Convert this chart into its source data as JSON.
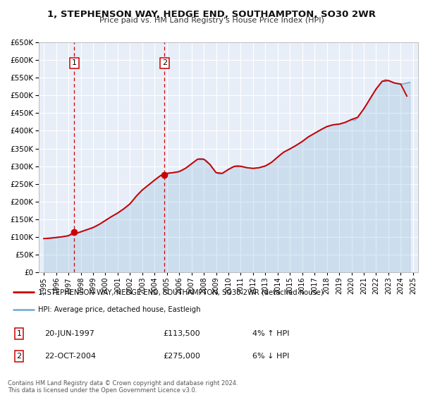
{
  "title": "1, STEPHENSON WAY, HEDGE END, SOUTHAMPTON, SO30 2WR",
  "subtitle": "Price paid vs. HM Land Registry's House Price Index (HPI)",
  "legend_line1": "1, STEPHENSON WAY, HEDGE END, SOUTHAMPTON, SO30 2WR (detached house)",
  "legend_line2": "HPI: Average price, detached house, Eastleigh",
  "annotation1_label": "1",
  "annotation1_date": "20-JUN-1997",
  "annotation1_price": "£113,500",
  "annotation1_hpi": "4% ↑ HPI",
  "annotation1_year": 1997.47,
  "annotation1_value": 113500,
  "annotation2_label": "2",
  "annotation2_date": "22-OCT-2004",
  "annotation2_price": "£275,000",
  "annotation2_hpi": "6% ↓ HPI",
  "annotation2_year": 2004.81,
  "annotation2_value": 275000,
  "price_color": "#cc0000",
  "hpi_color": "#7ab0d4",
  "background_color": "#e8eef8",
  "grid_color": "#ffffff",
  "ylim": [
    0,
    650000
  ],
  "xlim_start": 1994.6,
  "xlim_end": 2025.4,
  "footer": "Contains HM Land Registry data © Crown copyright and database right 2024.\nThis data is licensed under the Open Government Licence v3.0.",
  "hpi_data": [
    [
      1995.0,
      96000
    ],
    [
      1995.25,
      97000
    ],
    [
      1995.5,
      97500
    ],
    [
      1995.75,
      98000
    ],
    [
      1996.0,
      99000
    ],
    [
      1996.25,
      100000
    ],
    [
      1996.5,
      101000
    ],
    [
      1996.75,
      102500
    ],
    [
      1997.0,
      104000
    ],
    [
      1997.25,
      106000
    ],
    [
      1997.5,
      109000
    ],
    [
      1997.75,
      112000
    ],
    [
      1998.0,
      115000
    ],
    [
      1998.25,
      118000
    ],
    [
      1998.5,
      121000
    ],
    [
      1998.75,
      124000
    ],
    [
      1999.0,
      127000
    ],
    [
      1999.25,
      131000
    ],
    [
      1999.5,
      136000
    ],
    [
      1999.75,
      141000
    ],
    [
      2000.0,
      147000
    ],
    [
      2000.25,
      153000
    ],
    [
      2000.5,
      158000
    ],
    [
      2000.75,
      163000
    ],
    [
      2001.0,
      168000
    ],
    [
      2001.25,
      174000
    ],
    [
      2001.5,
      180000
    ],
    [
      2001.75,
      186000
    ],
    [
      2002.0,
      194000
    ],
    [
      2002.25,
      204000
    ],
    [
      2002.5,
      215000
    ],
    [
      2002.75,
      225000
    ],
    [
      2003.0,
      233000
    ],
    [
      2003.25,
      240000
    ],
    [
      2003.5,
      247000
    ],
    [
      2003.75,
      254000
    ],
    [
      2004.0,
      261000
    ],
    [
      2004.25,
      268000
    ],
    [
      2004.5,
      274000
    ],
    [
      2004.75,
      278000
    ],
    [
      2005.0,
      280000
    ],
    [
      2005.25,
      281000
    ],
    [
      2005.5,
      282000
    ],
    [
      2005.75,
      283000
    ],
    [
      2006.0,
      285000
    ],
    [
      2006.25,
      289000
    ],
    [
      2006.5,
      294000
    ],
    [
      2006.75,
      300000
    ],
    [
      2007.0,
      307000
    ],
    [
      2007.25,
      314000
    ],
    [
      2007.5,
      320000
    ],
    [
      2007.75,
      322000
    ],
    [
      2008.0,
      320000
    ],
    [
      2008.25,
      315000
    ],
    [
      2008.5,
      305000
    ],
    [
      2008.75,
      292000
    ],
    [
      2009.0,
      282000
    ],
    [
      2009.25,
      278000
    ],
    [
      2009.5,
      280000
    ],
    [
      2009.75,
      285000
    ],
    [
      2010.0,
      291000
    ],
    [
      2010.25,
      297000
    ],
    [
      2010.5,
      300000
    ],
    [
      2010.75,
      302000
    ],
    [
      2011.0,
      300000
    ],
    [
      2011.25,
      298000
    ],
    [
      2011.5,
      296000
    ],
    [
      2011.75,
      295000
    ],
    [
      2012.0,
      294000
    ],
    [
      2012.25,
      295000
    ],
    [
      2012.5,
      296000
    ],
    [
      2012.75,
      298000
    ],
    [
      2013.0,
      301000
    ],
    [
      2013.25,
      305000
    ],
    [
      2013.5,
      311000
    ],
    [
      2013.75,
      318000
    ],
    [
      2014.0,
      326000
    ],
    [
      2014.25,
      334000
    ],
    [
      2014.5,
      340000
    ],
    [
      2014.75,
      345000
    ],
    [
      2015.0,
      349000
    ],
    [
      2015.25,
      354000
    ],
    [
      2015.5,
      359000
    ],
    [
      2015.75,
      364000
    ],
    [
      2016.0,
      370000
    ],
    [
      2016.25,
      377000
    ],
    [
      2016.5,
      383000
    ],
    [
      2016.75,
      388000
    ],
    [
      2017.0,
      393000
    ],
    [
      2017.25,
      398000
    ],
    [
      2017.5,
      403000
    ],
    [
      2017.75,
      408000
    ],
    [
      2018.0,
      412000
    ],
    [
      2018.25,
      415000
    ],
    [
      2018.5,
      417000
    ],
    [
      2018.75,
      418000
    ],
    [
      2019.0,
      419000
    ],
    [
      2019.25,
      421000
    ],
    [
      2019.5,
      424000
    ],
    [
      2019.75,
      428000
    ],
    [
      2020.0,
      432000
    ],
    [
      2020.25,
      430000
    ],
    [
      2020.5,
      438000
    ],
    [
      2020.75,
      450000
    ],
    [
      2021.0,
      462000
    ],
    [
      2021.25,
      475000
    ],
    [
      2021.5,
      490000
    ],
    [
      2021.75,
      505000
    ],
    [
      2022.0,
      518000
    ],
    [
      2022.25,
      530000
    ],
    [
      2022.5,
      540000
    ],
    [
      2022.75,
      545000
    ],
    [
      2023.0,
      542000
    ],
    [
      2023.25,
      538000
    ],
    [
      2023.5,
      535000
    ],
    [
      2023.75,
      533000
    ],
    [
      2024.0,
      532000
    ],
    [
      2024.25,
      533000
    ],
    [
      2024.5,
      535000
    ],
    [
      2024.75,
      537000
    ]
  ],
  "price_data": [
    [
      1995.0,
      96000
    ],
    [
      1995.5,
      97000
    ],
    [
      1996.0,
      99000
    ],
    [
      1996.5,
      101000
    ],
    [
      1997.0,
      104000
    ],
    [
      1997.47,
      113500
    ],
    [
      1997.75,
      112000
    ],
    [
      1998.0,
      115000
    ],
    [
      1998.5,
      121000
    ],
    [
      1999.0,
      127000
    ],
    [
      1999.5,
      136000
    ],
    [
      2000.0,
      147000
    ],
    [
      2000.5,
      158000
    ],
    [
      2001.0,
      168000
    ],
    [
      2001.5,
      180000
    ],
    [
      2002.0,
      194000
    ],
    [
      2002.5,
      215000
    ],
    [
      2003.0,
      233000
    ],
    [
      2003.5,
      247000
    ],
    [
      2004.0,
      261000
    ],
    [
      2004.5,
      274000
    ],
    [
      2004.81,
      275000
    ],
    [
      2004.95,
      278000
    ],
    [
      2005.0,
      280000
    ],
    [
      2005.5,
      282000
    ],
    [
      2006.0,
      285000
    ],
    [
      2006.5,
      294000
    ],
    [
      2007.0,
      307000
    ],
    [
      2007.5,
      320000
    ],
    [
      2008.0,
      320000
    ],
    [
      2008.5,
      305000
    ],
    [
      2009.0,
      282000
    ],
    [
      2009.5,
      280000
    ],
    [
      2010.0,
      291000
    ],
    [
      2010.5,
      300000
    ],
    [
      2011.0,
      300000
    ],
    [
      2011.5,
      296000
    ],
    [
      2012.0,
      294000
    ],
    [
      2012.5,
      296000
    ],
    [
      2013.0,
      301000
    ],
    [
      2013.5,
      311000
    ],
    [
      2014.0,
      326000
    ],
    [
      2014.5,
      340000
    ],
    [
      2015.0,
      349000
    ],
    [
      2015.5,
      359000
    ],
    [
      2016.0,
      370000
    ],
    [
      2016.5,
      383000
    ],
    [
      2017.0,
      393000
    ],
    [
      2017.5,
      403000
    ],
    [
      2018.0,
      412000
    ],
    [
      2018.5,
      417000
    ],
    [
      2019.0,
      419000
    ],
    [
      2019.5,
      424000
    ],
    [
      2020.0,
      432000
    ],
    [
      2020.5,
      438000
    ],
    [
      2021.0,
      462000
    ],
    [
      2021.5,
      490000
    ],
    [
      2022.0,
      518000
    ],
    [
      2022.5,
      540000
    ],
    [
      2023.0,
      542000
    ],
    [
      2023.5,
      535000
    ],
    [
      2024.0,
      532000
    ],
    [
      2024.5,
      498000
    ]
  ]
}
